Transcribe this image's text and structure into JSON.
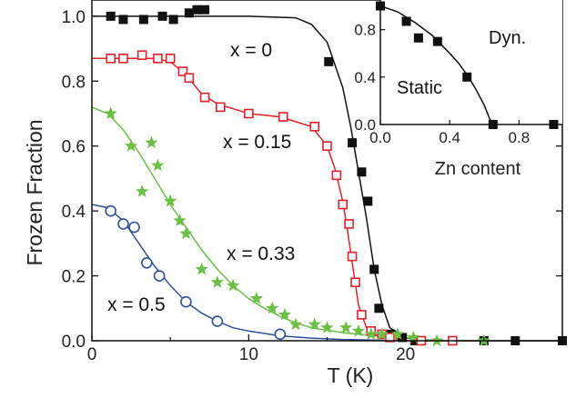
{
  "chart_data": [
    {
      "type": "scatter",
      "xlabel": "T (K)",
      "ylabel": "Frozen Fraction",
      "xlim": [
        0,
        30
      ],
      "ylim": [
        0,
        1.05
      ],
      "x_ticks": [
        0,
        10,
        20
      ],
      "x_tick_labels": [
        "0",
        "10",
        "20"
      ],
      "y_ticks": [
        0.0,
        0.2,
        0.4,
        0.6,
        0.8,
        1.0
      ],
      "y_tick_labels": [
        "0.0",
        "0.2",
        "0.4",
        "0.6",
        "0.8",
        "1.0"
      ],
      "annotations": [
        "x = 0",
        "x = 0.15",
        "x = 0.33",
        "x = 0.5"
      ],
      "series": [
        {
          "marker": "filled-square",
          "color": "#111111",
          "points": [
            [
              1.2,
              1.0
            ],
            [
              2.0,
              0.99
            ],
            [
              3.3,
              0.99
            ],
            [
              4.5,
              1.0
            ],
            [
              5.2,
              0.99
            ],
            [
              6.2,
              1.01
            ],
            [
              6.7,
              1.02
            ],
            [
              7.2,
              1.02
            ],
            [
              15.1,
              0.86
            ],
            [
              16.6,
              0.61
            ],
            [
              17.2,
              0.52
            ],
            [
              17.6,
              0.43
            ],
            [
              18.0,
              0.22
            ],
            [
              18.3,
              0.1
            ],
            [
              19.0,
              0.02
            ],
            [
              19.8,
              0.01
            ],
            [
              20.6,
              0.0
            ],
            [
              23.0,
              0.0
            ],
            [
              25.0,
              0.0
            ],
            [
              27.0,
              0.0
            ],
            [
              30.0,
              0.0
            ]
          ],
          "fit_curve": [
            [
              0,
              1.0
            ],
            [
              10,
              1.0
            ],
            [
              13,
              0.995
            ],
            [
              14,
              0.975
            ],
            [
              15,
              0.92
            ],
            [
              16,
              0.78
            ],
            [
              16.5,
              0.66
            ],
            [
              17,
              0.52
            ],
            [
              17.5,
              0.38
            ],
            [
              18,
              0.22
            ],
            [
              18.5,
              0.11
            ],
            [
              19,
              0.04
            ],
            [
              20,
              0.01
            ],
            [
              21,
              0.0
            ],
            [
              30,
              0.0
            ]
          ]
        },
        {
          "marker": "open-square",
          "color": "#e8202a",
          "points": [
            [
              1.2,
              0.87
            ],
            [
              2.0,
              0.87
            ],
            [
              3.2,
              0.88
            ],
            [
              4.2,
              0.87
            ],
            [
              5.0,
              0.87
            ],
            [
              5.8,
              0.83
            ],
            [
              6.2,
              0.81
            ],
            [
              7.2,
              0.75
            ],
            [
              8.2,
              0.72
            ],
            [
              10.0,
              0.7
            ],
            [
              12.2,
              0.69
            ],
            [
              14.2,
              0.66
            ],
            [
              15.0,
              0.6
            ],
            [
              15.6,
              0.51
            ],
            [
              16.0,
              0.42
            ],
            [
              16.4,
              0.36
            ],
            [
              16.6,
              0.26
            ],
            [
              16.8,
              0.18
            ],
            [
              17.2,
              0.08
            ],
            [
              17.8,
              0.03
            ],
            [
              18.5,
              0.02
            ],
            [
              19.0,
              0.01
            ],
            [
              21.0,
              0.0
            ],
            [
              23.0,
              0.0
            ]
          ],
          "fit_curve": [
            [
              0,
              0.87
            ],
            [
              4,
              0.87
            ],
            [
              5,
              0.86
            ],
            [
              6,
              0.82
            ],
            [
              7,
              0.76
            ],
            [
              8,
              0.73
            ],
            [
              10,
              0.7
            ],
            [
              12,
              0.69
            ],
            [
              14,
              0.66
            ],
            [
              15,
              0.6
            ],
            [
              15.5,
              0.53
            ],
            [
              16,
              0.43
            ],
            [
              16.3,
              0.34
            ],
            [
              16.6,
              0.24
            ],
            [
              17,
              0.11
            ],
            [
              17.5,
              0.04
            ],
            [
              18,
              0.02
            ],
            [
              19,
              0.01
            ],
            [
              20,
              0.0
            ],
            [
              25,
              0.0
            ]
          ]
        },
        {
          "marker": "filled-star",
          "color": "#6cbf45",
          "points": [
            [
              1.2,
              0.7
            ],
            [
              2.5,
              0.6
            ],
            [
              3.2,
              0.46
            ],
            [
              3.8,
              0.61
            ],
            [
              4.2,
              0.54
            ],
            [
              5.0,
              0.43
            ],
            [
              5.6,
              0.37
            ],
            [
              6.0,
              0.33
            ],
            [
              7.0,
              0.22
            ],
            [
              8.0,
              0.18
            ],
            [
              9.0,
              0.17
            ],
            [
              10.5,
              0.13
            ],
            [
              11.5,
              0.1
            ],
            [
              12.3,
              0.08
            ],
            [
              13.0,
              0.05
            ],
            [
              14.2,
              0.05
            ],
            [
              15.0,
              0.04
            ],
            [
              16.2,
              0.04
            ],
            [
              17.0,
              0.03
            ],
            [
              17.8,
              0.02
            ],
            [
              18.5,
              0.02
            ],
            [
              19.5,
              0.02
            ],
            [
              20.5,
              0.01
            ],
            [
              22.0,
              0.0
            ],
            [
              25.0,
              0.0
            ]
          ],
          "fit_curve": [
            [
              0,
              0.72
            ],
            [
              1,
              0.7
            ],
            [
              2,
              0.65
            ],
            [
              3,
              0.58
            ],
            [
              4,
              0.5
            ],
            [
              5,
              0.42
            ],
            [
              6,
              0.35
            ],
            [
              7,
              0.28
            ],
            [
              8,
              0.22
            ],
            [
              9,
              0.17
            ],
            [
              10,
              0.13
            ],
            [
              11,
              0.1
            ],
            [
              12,
              0.075
            ],
            [
              13,
              0.055
            ],
            [
              14,
              0.04
            ],
            [
              16,
              0.025
            ],
            [
              18,
              0.015
            ],
            [
              20,
              0.01
            ],
            [
              22,
              0.0
            ],
            [
              25,
              0.0
            ]
          ]
        },
        {
          "marker": "open-circle",
          "color": "#2d4f9e",
          "points": [
            [
              1.2,
              0.4
            ],
            [
              2.0,
              0.36
            ],
            [
              2.7,
              0.35
            ],
            [
              3.5,
              0.24
            ],
            [
              4.3,
              0.2
            ],
            [
              6.0,
              0.12
            ],
            [
              8.0,
              0.06
            ],
            [
              12.0,
              0.02
            ]
          ],
          "fit_curve": [
            [
              0,
              0.42
            ],
            [
              1,
              0.41
            ],
            [
              2,
              0.37
            ],
            [
              3,
              0.3
            ],
            [
              4,
              0.23
            ],
            [
              5,
              0.17
            ],
            [
              6,
              0.12
            ],
            [
              7,
              0.085
            ],
            [
              8,
              0.06
            ],
            [
              9,
              0.04
            ],
            [
              10,
              0.03
            ],
            [
              12,
              0.015
            ],
            [
              14,
              0.008
            ],
            [
              16,
              0.004
            ],
            [
              20,
              0.0
            ]
          ]
        }
      ]
    },
    {
      "type": "scatter",
      "xlabel": "Zn content",
      "ylabel": "",
      "xlim": [
        0,
        1.05
      ],
      "ylim": [
        0,
        1.05
      ],
      "x_ticks": [
        0.0,
        0.4,
        0.8
      ],
      "x_tick_labels": [
        "0.0",
        "0.4",
        "0.8"
      ],
      "y_ticks": [
        0.0,
        0.4,
        0.8
      ],
      "y_tick_labels": [
        "0.0",
        "0.4",
        "0.8"
      ],
      "region_labels": [
        "Dyn.",
        "Static"
      ],
      "series": [
        {
          "marker": "filled-square",
          "color": "#111111",
          "points": [
            [
              0.0,
              1.0
            ],
            [
              0.15,
              0.87
            ],
            [
              0.22,
              0.73
            ],
            [
              0.33,
              0.7
            ],
            [
              0.5,
              0.4
            ],
            [
              0.65,
              0.0
            ],
            [
              1.0,
              0.0
            ]
          ],
          "fit_curve": [
            [
              0.0,
              1.0
            ],
            [
              0.1,
              0.95
            ],
            [
              0.2,
              0.86
            ],
            [
              0.3,
              0.75
            ],
            [
              0.4,
              0.6
            ],
            [
              0.45,
              0.52
            ],
            [
              0.5,
              0.42
            ],
            [
              0.55,
              0.3
            ],
            [
              0.6,
              0.16
            ],
            [
              0.63,
              0.05
            ],
            [
              0.65,
              0.0
            ]
          ]
        }
      ]
    }
  ]
}
